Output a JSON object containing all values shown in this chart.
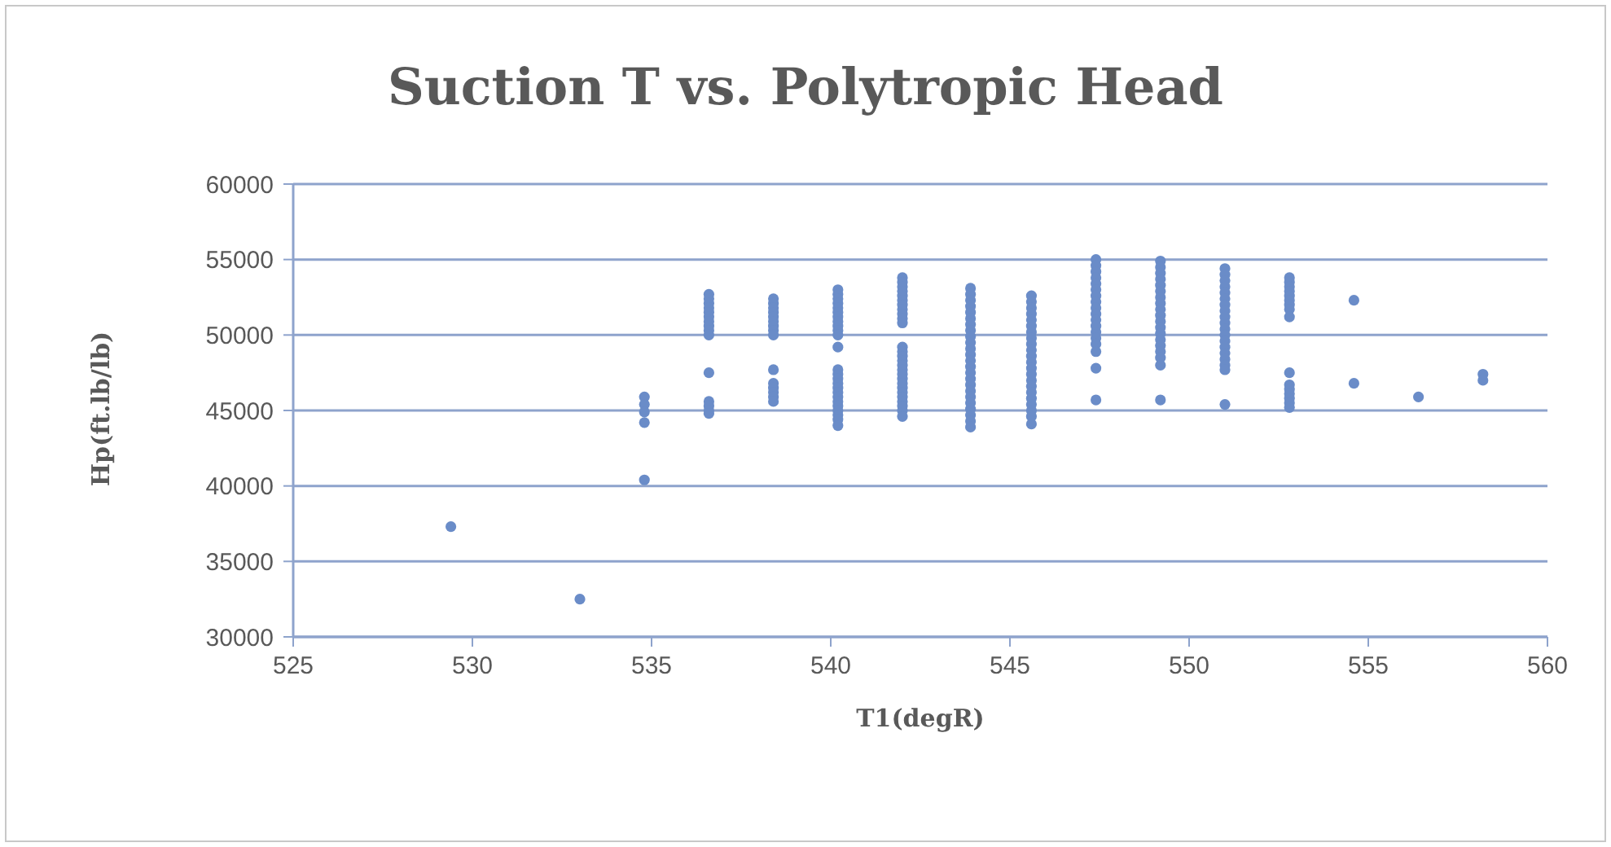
{
  "chart_data": {
    "type": "scatter",
    "title": "Suction T vs. Polytropic Head",
    "xlabel": "T1(degR)",
    "ylabel": "Hp(ft.lb/lb)",
    "xlim": [
      525,
      560
    ],
    "xticks": [
      525,
      530,
      535,
      540,
      545,
      550,
      555,
      560
    ],
    "ylim": [
      30000,
      60000
    ],
    "yticks": [
      30000,
      35000,
      40000,
      45000,
      50000,
      55000,
      60000
    ],
    "grid": "y",
    "legend": false,
    "marker": "circle",
    "series": [
      {
        "color": "#6a8cc8",
        "x": [
          529.4,
          533.0,
          534.8,
          534.8,
          534.8,
          534.8,
          534.8,
          536.6,
          536.6,
          536.6,
          536.6,
          536.6,
          536.6,
          536.6,
          536.6,
          536.6,
          536.6,
          536.6,
          536.6,
          536.6,
          536.6,
          536.6,
          538.4,
          538.4,
          538.4,
          538.4,
          538.4,
          538.4,
          538.4,
          538.4,
          538.4,
          538.4,
          538.4,
          538.4,
          538.4,
          538.4,
          538.4,
          540.2,
          540.2,
          540.2,
          540.2,
          540.2,
          540.2,
          540.2,
          540.2,
          540.2,
          540.2,
          540.2,
          540.2,
          540.2,
          540.2,
          540.2,
          540.2,
          540.2,
          540.2,
          540.2,
          540.2,
          540.2,
          540.2,
          540.2,
          540.2,
          540.2,
          542.0,
          542.0,
          542.0,
          542.0,
          542.0,
          542.0,
          542.0,
          542.0,
          542.0,
          542.0,
          542.0,
          542.0,
          542.0,
          542.0,
          542.0,
          542.0,
          542.0,
          542.0,
          542.0,
          542.0,
          542.0,
          542.0,
          542.0,
          542.0,
          542.0,
          542.0,
          542.0,
          543.9,
          543.9,
          543.9,
          543.9,
          543.9,
          543.9,
          543.9,
          543.9,
          543.9,
          543.9,
          543.9,
          543.9,
          543.9,
          543.9,
          543.9,
          543.9,
          543.9,
          543.9,
          543.9,
          543.9,
          543.9,
          543.9,
          543.9,
          543.9,
          545.6,
          545.6,
          545.6,
          545.6,
          545.6,
          545.6,
          545.6,
          545.6,
          545.6,
          545.6,
          545.6,
          545.6,
          545.6,
          545.6,
          545.6,
          545.6,
          545.6,
          545.6,
          545.6,
          545.6,
          545.6,
          545.6,
          547.4,
          547.4,
          547.4,
          547.4,
          547.4,
          547.4,
          547.4,
          547.4,
          547.4,
          547.4,
          547.4,
          547.4,
          547.4,
          547.4,
          547.4,
          547.4,
          547.4,
          547.4,
          549.2,
          549.2,
          549.2,
          549.2,
          549.2,
          549.2,
          549.2,
          549.2,
          549.2,
          549.2,
          549.2,
          549.2,
          549.2,
          549.2,
          549.2,
          549.2,
          549.2,
          549.2,
          549.2,
          551.0,
          551.0,
          551.0,
          551.0,
          551.0,
          551.0,
          551.0,
          551.0,
          551.0,
          551.0,
          551.0,
          551.0,
          551.0,
          551.0,
          551.0,
          551.0,
          551.0,
          551.0,
          551.0,
          552.8,
          552.8,
          552.8,
          552.8,
          552.8,
          552.8,
          552.8,
          552.8,
          552.8,
          552.8,
          552.8,
          552.8,
          552.8,
          552.8,
          552.8,
          552.8,
          554.6,
          554.6,
          556.4,
          558.2,
          558.2
        ],
        "values": [
          37300,
          32500,
          45900,
          45400,
          44900,
          44200,
          40400,
          52700,
          52400,
          52100,
          51800,
          51500,
          51200,
          50900,
          50600,
          50300,
          50000,
          47500,
          45600,
          45300,
          45000,
          44800,
          52400,
          52100,
          51800,
          51500,
          51200,
          50900,
          50600,
          50300,
          50000,
          47700,
          46800,
          46500,
          46200,
          45900,
          45600,
          53000,
          52700,
          52400,
          52100,
          51800,
          51500,
          51200,
          50900,
          50600,
          50300,
          50000,
          49200,
          47700,
          47400,
          47100,
          46800,
          46500,
          46200,
          45900,
          45600,
          45300,
          45000,
          44700,
          44400,
          44000,
          53800,
          53500,
          53200,
          52900,
          52600,
          52300,
          52000,
          51700,
          51400,
          51100,
          50800,
          49200,
          48900,
          48600,
          48300,
          48000,
          47700,
          47400,
          47100,
          46800,
          46500,
          46200,
          45900,
          45600,
          45300,
          45000,
          44600,
          53100,
          52700,
          52300,
          51900,
          51500,
          51100,
          50700,
          50300,
          49900,
          49500,
          49100,
          48700,
          48300,
          47900,
          47500,
          47100,
          46700,
          46300,
          45900,
          45500,
          45100,
          44700,
          44300,
          43900,
          52600,
          52200,
          51800,
          51400,
          51000,
          50600,
          50200,
          49800,
          49400,
          49000,
          48600,
          48200,
          47800,
          47400,
          47000,
          46600,
          46200,
          45800,
          45400,
          45000,
          44600,
          44100,
          55000,
          54600,
          54200,
          53800,
          53400,
          53000,
          52600,
          52200,
          51800,
          51400,
          51000,
          50600,
          50200,
          49800,
          49400,
          48900,
          47800,
          45700,
          54900,
          54500,
          54100,
          53700,
          53300,
          52900,
          52500,
          52100,
          51700,
          51300,
          50900,
          50500,
          50100,
          49700,
          49300,
          48900,
          48500,
          48000,
          45700,
          54400,
          54000,
          53600,
          53200,
          52800,
          52400,
          52000,
          51600,
          51200,
          50800,
          50400,
          50000,
          49600,
          49200,
          48800,
          48400,
          48000,
          47700,
          45400,
          53800,
          53500,
          53200,
          52900,
          52600,
          52300,
          52000,
          51700,
          51200,
          47500,
          46700,
          46400,
          46100,
          45800,
          45500,
          45200,
          52300,
          46800,
          45900,
          47400,
          47000
        ]
      }
    ]
  }
}
